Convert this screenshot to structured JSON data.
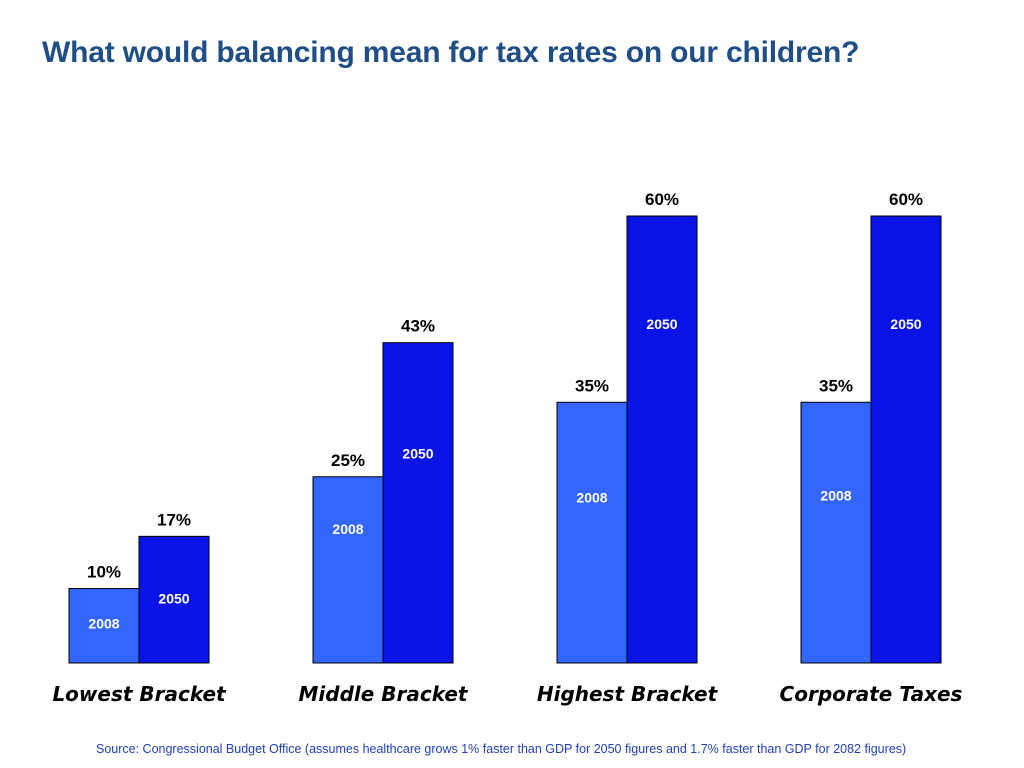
{
  "title": "What would balancing mean for tax rates on our children?",
  "source": "Source: Congressional Budget Office (assumes healthcare grows 1% faster than GDP for 2050 figures and 1.7% faster than GDP for 2082 figures)",
  "colors": {
    "title": "#1f4e86",
    "series_2008": "#3366ff",
    "series_2050": "#0a14e6",
    "bar_outline": "#000000",
    "source_text": "#1f3fbf"
  },
  "chart_data": {
    "type": "bar",
    "title": "What would balancing mean for tax rates on our children?",
    "categories": [
      "Lowest Bracket",
      "Middle Bracket",
      "Highest Bracket",
      "Corporate Taxes"
    ],
    "series": [
      {
        "name": "2008",
        "values": [
          10,
          25,
          35,
          35
        ],
        "labels": [
          "10%",
          "25%",
          "35%",
          "35%"
        ]
      },
      {
        "name": "2050",
        "values": [
          17,
          43,
          60,
          60
        ],
        "labels": [
          "17%",
          "43%",
          "60%",
          "60%"
        ]
      }
    ],
    "xlabel": "",
    "ylabel": "",
    "ylim": [
      0,
      60
    ],
    "grid": false,
    "legend": "none (series names printed inside bars)"
  }
}
